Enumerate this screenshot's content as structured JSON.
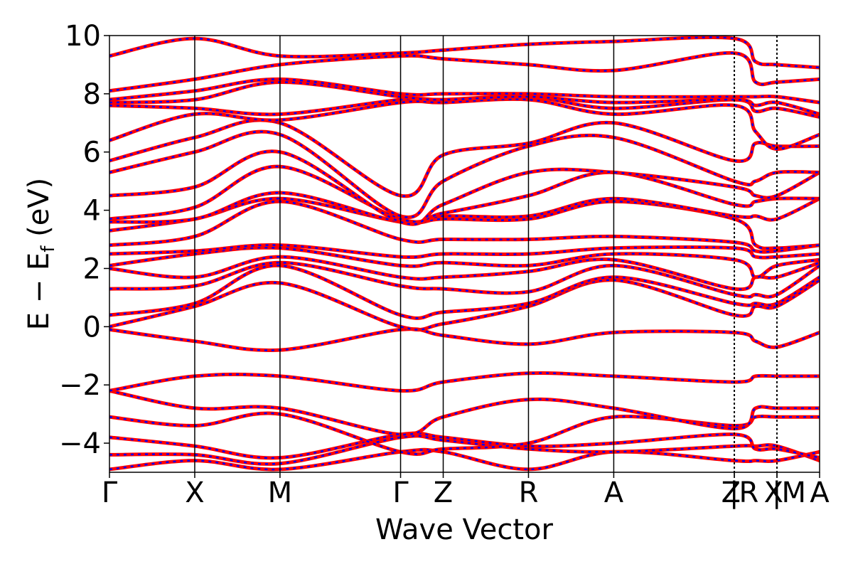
{
  "chart_data": {
    "type": "line",
    "title": "",
    "xlabel": "Wave Vector",
    "ylabel_main": "E − E",
    "ylabel_sub": "f",
    "ylabel_unit": " (eV)",
    "ylim": [
      -5,
      10
    ],
    "yticks": [
      10,
      8,
      6,
      4,
      2,
      0,
      -2,
      -4
    ],
    "ytick_labels": [
      "10",
      "8",
      "6",
      "4",
      "2",
      "0",
      "−2",
      "−4"
    ],
    "kpoints": [
      {
        "label": "Γ",
        "x": 0.0
      },
      {
        "label": "X",
        "x": 1.0
      },
      {
        "label": "M",
        "x": 2.0
      },
      {
        "label": "Γ",
        "x": 3.414
      },
      {
        "label": "Z",
        "x": 3.914
      },
      {
        "label": "R",
        "x": 4.914
      },
      {
        "label": "A",
        "x": 5.914
      },
      {
        "label": "Z",
        "x": 7.328
      },
      {
        "label": "|R",
        "x": 7.328
      },
      {
        "label": "X",
        "x": 7.828
      },
      {
        "label": "|M",
        "x": 7.828
      },
      {
        "label": "A",
        "x": 8.328
      }
    ],
    "segment_boundaries": [
      1.0,
      2.0,
      3.414,
      3.914,
      4.914,
      5.914
    ],
    "dashed_boundaries": [
      7.328,
      7.828
    ],
    "x_range": [
      0,
      8.328
    ],
    "series": [
      {
        "color": "#ff0000",
        "style": "solid"
      },
      {
        "color": "#0000ff",
        "style": "dashed"
      }
    ],
    "bands": [
      [
        -4.9,
        -4.6,
        -4.9,
        -4.3,
        -4.3,
        -4.9,
        -4.3,
        -4.6,
        -4.6,
        -4.6,
        -4.3
      ],
      [
        -4.4,
        -4.4,
        -4.7,
        -3.8,
        -3.9,
        -4.2,
        -4.3,
        -4.1,
        -4.1,
        -4.1,
        -4.6
      ],
      [
        -3.8,
        -4.1,
        -4.5,
        -3.7,
        -3.8,
        -4.1,
        -4.0,
        -3.7,
        -4.2,
        -4.2,
        -4.5
      ],
      [
        -3.1,
        -3.4,
        -3.0,
        -4.3,
        -4.2,
        -4.0,
        -3.1,
        -3.4,
        -3.1,
        -3.1,
        -3.1
      ],
      [
        -2.2,
        -2.8,
        -2.8,
        -3.7,
        -3.1,
        -2.5,
        -2.8,
        -3.5,
        -2.8,
        -2.8,
        -2.8
      ],
      [
        -2.2,
        -1.7,
        -1.7,
        -2.2,
        -1.9,
        -1.6,
        -1.7,
        -1.9,
        -1.7,
        -1.7,
        -1.7
      ],
      [
        -0.1,
        -0.5,
        -0.8,
        -0.1,
        -0.3,
        -0.6,
        -0.2,
        -0.2,
        -0.5,
        -0.7,
        -0.2
      ],
      [
        0.0,
        0.7,
        1.5,
        0.0,
        0.1,
        0.7,
        1.6,
        0.4,
        0.7,
        0.7,
        1.6
      ],
      [
        0.4,
        0.8,
        2.1,
        0.4,
        0.5,
        0.8,
        1.7,
        0.8,
        0.8,
        0.8,
        1.7
      ],
      [
        1.3,
        1.4,
        2.2,
        1.4,
        1.3,
        1.2,
        2.1,
        1.1,
        1.1,
        1.1,
        2.1
      ],
      [
        2.0,
        1.7,
        2.4,
        1.7,
        1.7,
        1.9,
        2.3,
        1.3,
        1.7,
        1.7,
        2.2
      ],
      [
        2.1,
        2.5,
        2.7,
        2.1,
        2.2,
        2.1,
        2.5,
        2.3,
        1.7,
        2.1,
        2.3
      ],
      [
        2.5,
        2.6,
        2.8,
        2.4,
        2.5,
        2.5,
        2.7,
        2.7,
        2.4,
        2.4,
        2.5
      ],
      [
        2.8,
        3.1,
        4.3,
        3.0,
        3.0,
        3.0,
        3.1,
        2.9,
        2.6,
        2.6,
        2.8
      ],
      [
        3.3,
        3.7,
        4.4,
        3.6,
        3.7,
        3.7,
        4.3,
        3.7,
        2.8,
        2.7,
        2.8
      ],
      [
        3.6,
        3.7,
        4.6,
        3.6,
        3.8,
        3.8,
        4.4,
        3.8,
        3.8,
        3.7,
        4.4
      ],
      [
        3.7,
        4.1,
        5.5,
        3.7,
        3.9,
        4.5,
        5.3,
        4.2,
        4.3,
        4.4,
        4.4
      ],
      [
        4.5,
        4.8,
        6.0,
        3.6,
        4.2,
        5.3,
        5.3,
        4.8,
        4.5,
        4.5,
        5.3
      ],
      [
        5.3,
        6.0,
        6.6,
        3.8,
        5.0,
        6.2,
        6.5,
        5.0,
        5.0,
        5.3,
        5.3
      ],
      [
        5.7,
        6.5,
        7.0,
        4.5,
        5.9,
        6.3,
        7.0,
        5.7,
        6.3,
        6.2,
        6.2
      ],
      [
        6.4,
        7.3,
        7.1,
        7.7,
        7.7,
        7.8,
        7.3,
        7.6,
        6.7,
        6.1,
        6.6
      ],
      [
        7.6,
        7.5,
        7.3,
        7.8,
        7.8,
        7.9,
        7.5,
        7.8,
        7.4,
        7.5,
        7.2
      ],
      [
        7.7,
        7.8,
        8.4,
        7.9,
        7.8,
        7.9,
        7.7,
        7.8,
        7.6,
        7.7,
        7.3
      ],
      [
        7.8,
        8.1,
        8.5,
        8.0,
        8.0,
        8.0,
        7.9,
        7.9,
        7.9,
        7.9,
        7.7
      ],
      [
        8.1,
        8.5,
        9.0,
        9.3,
        9.2,
        9.0,
        8.8,
        9.4,
        8.4,
        8.4,
        8.5
      ],
      [
        9.3,
        9.9,
        9.3,
        9.4,
        9.5,
        9.7,
        9.8,
        9.9,
        9.1,
        9.0,
        8.9
      ]
    ],
    "band_x": [
      0.0,
      1.0,
      2.0,
      3.414,
      3.914,
      4.914,
      5.914,
      7.328,
      7.578,
      7.828,
      8.328
    ]
  }
}
